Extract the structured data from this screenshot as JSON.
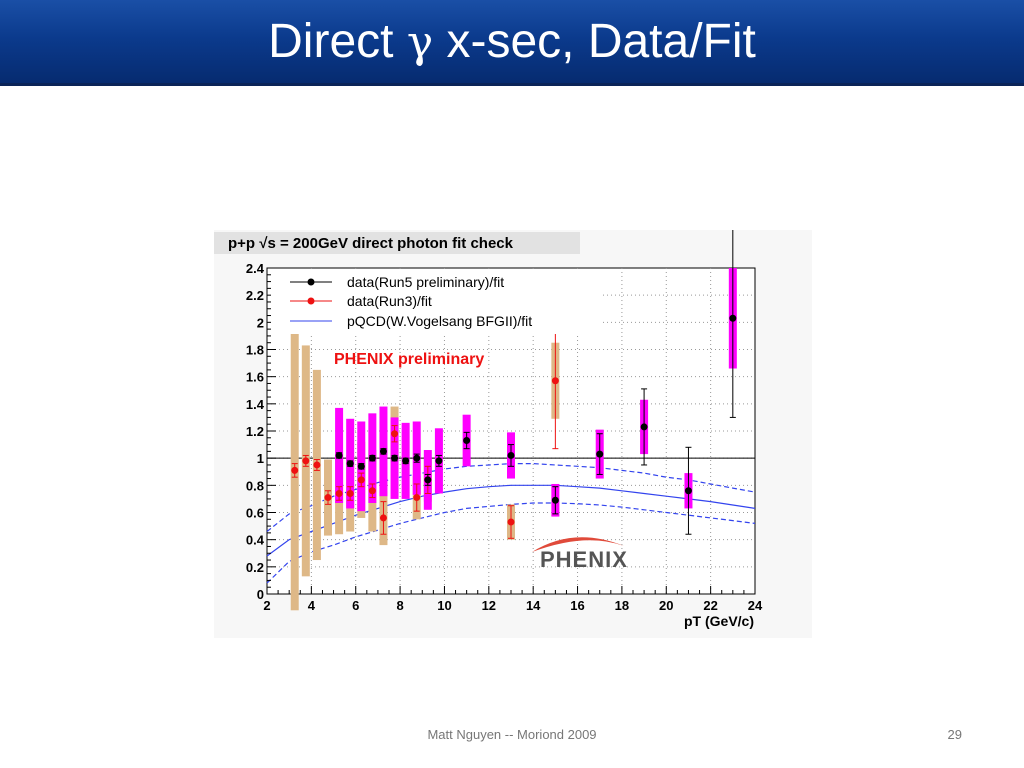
{
  "slide": {
    "title_pre": "Direct ",
    "title_symbol": "γ",
    "title_post": " x-sec, Data/Fit",
    "footer": "Matt Nguyen -- Moriond 2009",
    "page_number": "29"
  },
  "chart_data": {
    "type": "scatter",
    "title": "p+p √s = 200GeV direct photon fit check",
    "xlabel": "pT (GeV/c)",
    "ylabel": "",
    "xlim": [
      2,
      24
    ],
    "ylim": [
      0,
      2.4
    ],
    "xticks": [
      2,
      4,
      6,
      8,
      10,
      12,
      14,
      16,
      18,
      20,
      22,
      24
    ],
    "yticks": [
      0,
      0.2,
      0.4,
      0.6,
      0.8,
      1,
      1.2,
      1.4,
      1.6,
      1.8,
      2,
      2.2,
      2.4
    ],
    "grid": true,
    "legend_position": "top-left",
    "annotations": [
      "PHENIX preliminary"
    ],
    "logo_text": "PHENIX",
    "colors": {
      "run5": "#000000",
      "run3": "#ee1111",
      "run5_sys": "#ff00ff",
      "run3_sys": "#deb887",
      "pqcd": "#3344ee"
    },
    "series": [
      {
        "name": "data(Run5 preliminary)/fit",
        "marker": "black-circle",
        "points": [
          {
            "x": 5.25,
            "y": 1.02,
            "stat": 0.02,
            "sys": 0.35
          },
          {
            "x": 5.75,
            "y": 0.96,
            "stat": 0.02,
            "sys": 0.33
          },
          {
            "x": 6.25,
            "y": 0.94,
            "stat": 0.02,
            "sys": 0.33
          },
          {
            "x": 6.75,
            "y": 1.0,
            "stat": 0.02,
            "sys": 0.33
          },
          {
            "x": 7.25,
            "y": 1.05,
            "stat": 0.02,
            "sys": 0.33
          },
          {
            "x": 7.75,
            "y": 1.0,
            "stat": 0.02,
            "sys": 0.3
          },
          {
            "x": 8.25,
            "y": 0.98,
            "stat": 0.02,
            "sys": 0.28
          },
          {
            "x": 8.75,
            "y": 1.0,
            "stat": 0.03,
            "sys": 0.27
          },
          {
            "x": 9.25,
            "y": 0.84,
            "stat": 0.04,
            "sys": 0.22
          },
          {
            "x": 9.75,
            "y": 0.98,
            "stat": 0.04,
            "sys": 0.24
          },
          {
            "x": 11.0,
            "y": 1.13,
            "stat": 0.06,
            "sys": 0.19
          },
          {
            "x": 13.0,
            "y": 1.02,
            "stat": 0.08,
            "sys": 0.17
          },
          {
            "x": 15.0,
            "y": 0.69,
            "stat": 0.1,
            "sys": 0.12
          },
          {
            "x": 17.0,
            "y": 1.03,
            "stat": 0.15,
            "sys": 0.18
          },
          {
            "x": 19.0,
            "y": 1.23,
            "stat": 0.28,
            "sys": 0.2
          },
          {
            "x": 21.0,
            "y": 0.76,
            "stat": 0.32,
            "sys": 0.13
          },
          {
            "x": 23.0,
            "y": 2.03,
            "stat": 0.73,
            "sys": 0.37
          }
        ]
      },
      {
        "name": "data(Run3)/fit",
        "marker": "red-circle",
        "points": [
          {
            "x": 3.25,
            "y": 0.91,
            "stat": 0.05,
            "sys": 1.03
          },
          {
            "x": 3.75,
            "y": 0.98,
            "stat": 0.04,
            "sys": 0.85
          },
          {
            "x": 4.25,
            "y": 0.95,
            "stat": 0.04,
            "sys": 0.7
          },
          {
            "x": 4.75,
            "y": 0.71,
            "stat": 0.05,
            "sys": 0.28
          },
          {
            "x": 5.25,
            "y": 0.74,
            "stat": 0.05,
            "sys": 0.3
          },
          {
            "x": 5.75,
            "y": 0.74,
            "stat": 0.05,
            "sys": 0.28
          },
          {
            "x": 6.25,
            "y": 0.84,
            "stat": 0.05,
            "sys": 0.28
          },
          {
            "x": 6.75,
            "y": 0.76,
            "stat": 0.05,
            "sys": 0.3
          },
          {
            "x": 7.25,
            "y": 0.56,
            "stat": 0.12,
            "sys": 0.2
          },
          {
            "x": 7.75,
            "y": 1.18,
            "stat": 0.06,
            "sys": 0.2
          },
          {
            "x": 8.75,
            "y": 0.71,
            "stat": 0.1,
            "sys": 0.16
          },
          {
            "x": 9.25,
            "y": 0.84,
            "stat": 0.1,
            "sys": 0.16
          },
          {
            "x": 13.0,
            "y": 0.53,
            "stat": 0.12,
            "sys": 0.13
          },
          {
            "x": 15.0,
            "y": 1.57,
            "stat": 0.5,
            "sys": 0.28
          }
        ]
      },
      {
        "name": "pQCD(W.Vogelsang BFGII)/fit",
        "type": "line",
        "style": "solid",
        "x": [
          2,
          3,
          4,
          5,
          6,
          7,
          8,
          9,
          10,
          11,
          12,
          13,
          14,
          15,
          16,
          17,
          18,
          19,
          20,
          21,
          22,
          23,
          24
        ],
        "y": [
          0.28,
          0.4,
          0.46,
          0.52,
          0.58,
          0.63,
          0.68,
          0.72,
          0.75,
          0.775,
          0.79,
          0.8,
          0.8,
          0.8,
          0.79,
          0.78,
          0.76,
          0.74,
          0.72,
          0.7,
          0.68,
          0.655,
          0.63
        ]
      },
      {
        "name": "pQCD upper",
        "type": "line",
        "style": "dashed",
        "x": [
          2,
          3,
          4,
          5,
          6,
          7,
          8,
          9,
          10,
          11,
          12,
          13,
          14,
          15,
          16,
          17,
          18,
          19,
          20,
          21,
          22,
          23,
          24
        ],
        "y": [
          0.46,
          0.59,
          0.65,
          0.72,
          0.77,
          0.82,
          0.86,
          0.89,
          0.92,
          0.94,
          0.95,
          0.96,
          0.96,
          0.95,
          0.94,
          0.93,
          0.91,
          0.89,
          0.86,
          0.84,
          0.81,
          0.78,
          0.75
        ]
      },
      {
        "name": "pQCD lower",
        "type": "line",
        "style": "dashed",
        "x": [
          2,
          3,
          4,
          5,
          6,
          7,
          8,
          9,
          10,
          11,
          12,
          13,
          14,
          15,
          16,
          17,
          18,
          19,
          20,
          21,
          22,
          23,
          24
        ],
        "y": [
          0.08,
          0.24,
          0.31,
          0.36,
          0.42,
          0.47,
          0.52,
          0.56,
          0.6,
          0.63,
          0.645,
          0.66,
          0.67,
          0.67,
          0.665,
          0.655,
          0.64,
          0.62,
          0.6,
          0.58,
          0.56,
          0.54,
          0.52
        ]
      }
    ]
  }
}
